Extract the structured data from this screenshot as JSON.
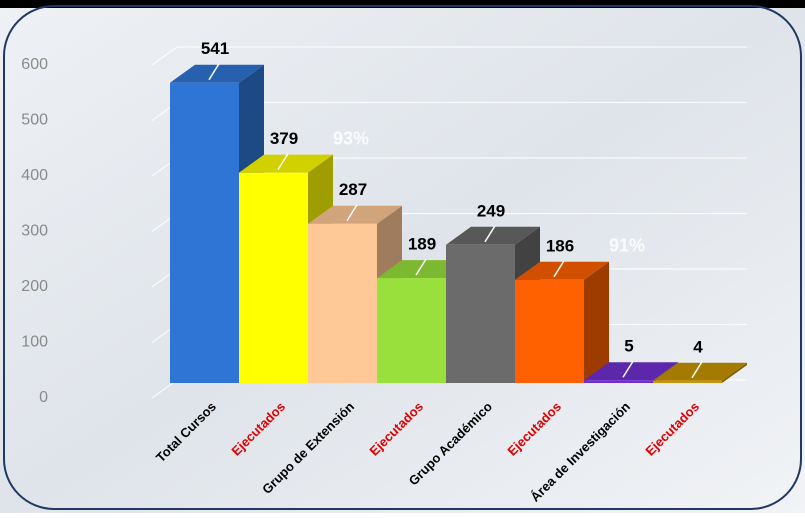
{
  "chart_data": {
    "type": "bar3d",
    "categories": [
      "Total Cursos",
      "Ejecutados",
      "Grupo de Extensión",
      "Ejecutados",
      "Grupo Académico",
      "Ejecutados",
      "Área de Investigación",
      "Ejecutados"
    ],
    "values": [
      541,
      379,
      287,
      189,
      249,
      186,
      5,
      4
    ],
    "colors": [
      "#2e75d6",
      "#ffff00",
      "#ffc896",
      "#99e03c",
      "#6b6b6b",
      "#ff6000",
      "#7030d0",
      "#c89600"
    ],
    "category_colors": [
      "#000000",
      "#e00000",
      "#000000",
      "#e00000",
      "#000000",
      "#e00000",
      "#000000",
      "#e00000"
    ],
    "annotations": [
      {
        "text": "93%",
        "index": 1
      },
      {
        "text": "91%",
        "index": 5
      }
    ],
    "ylim": [
      0,
      600
    ],
    "yticks": [
      0,
      100,
      200,
      300,
      400,
      500,
      600
    ],
    "grid": true
  }
}
